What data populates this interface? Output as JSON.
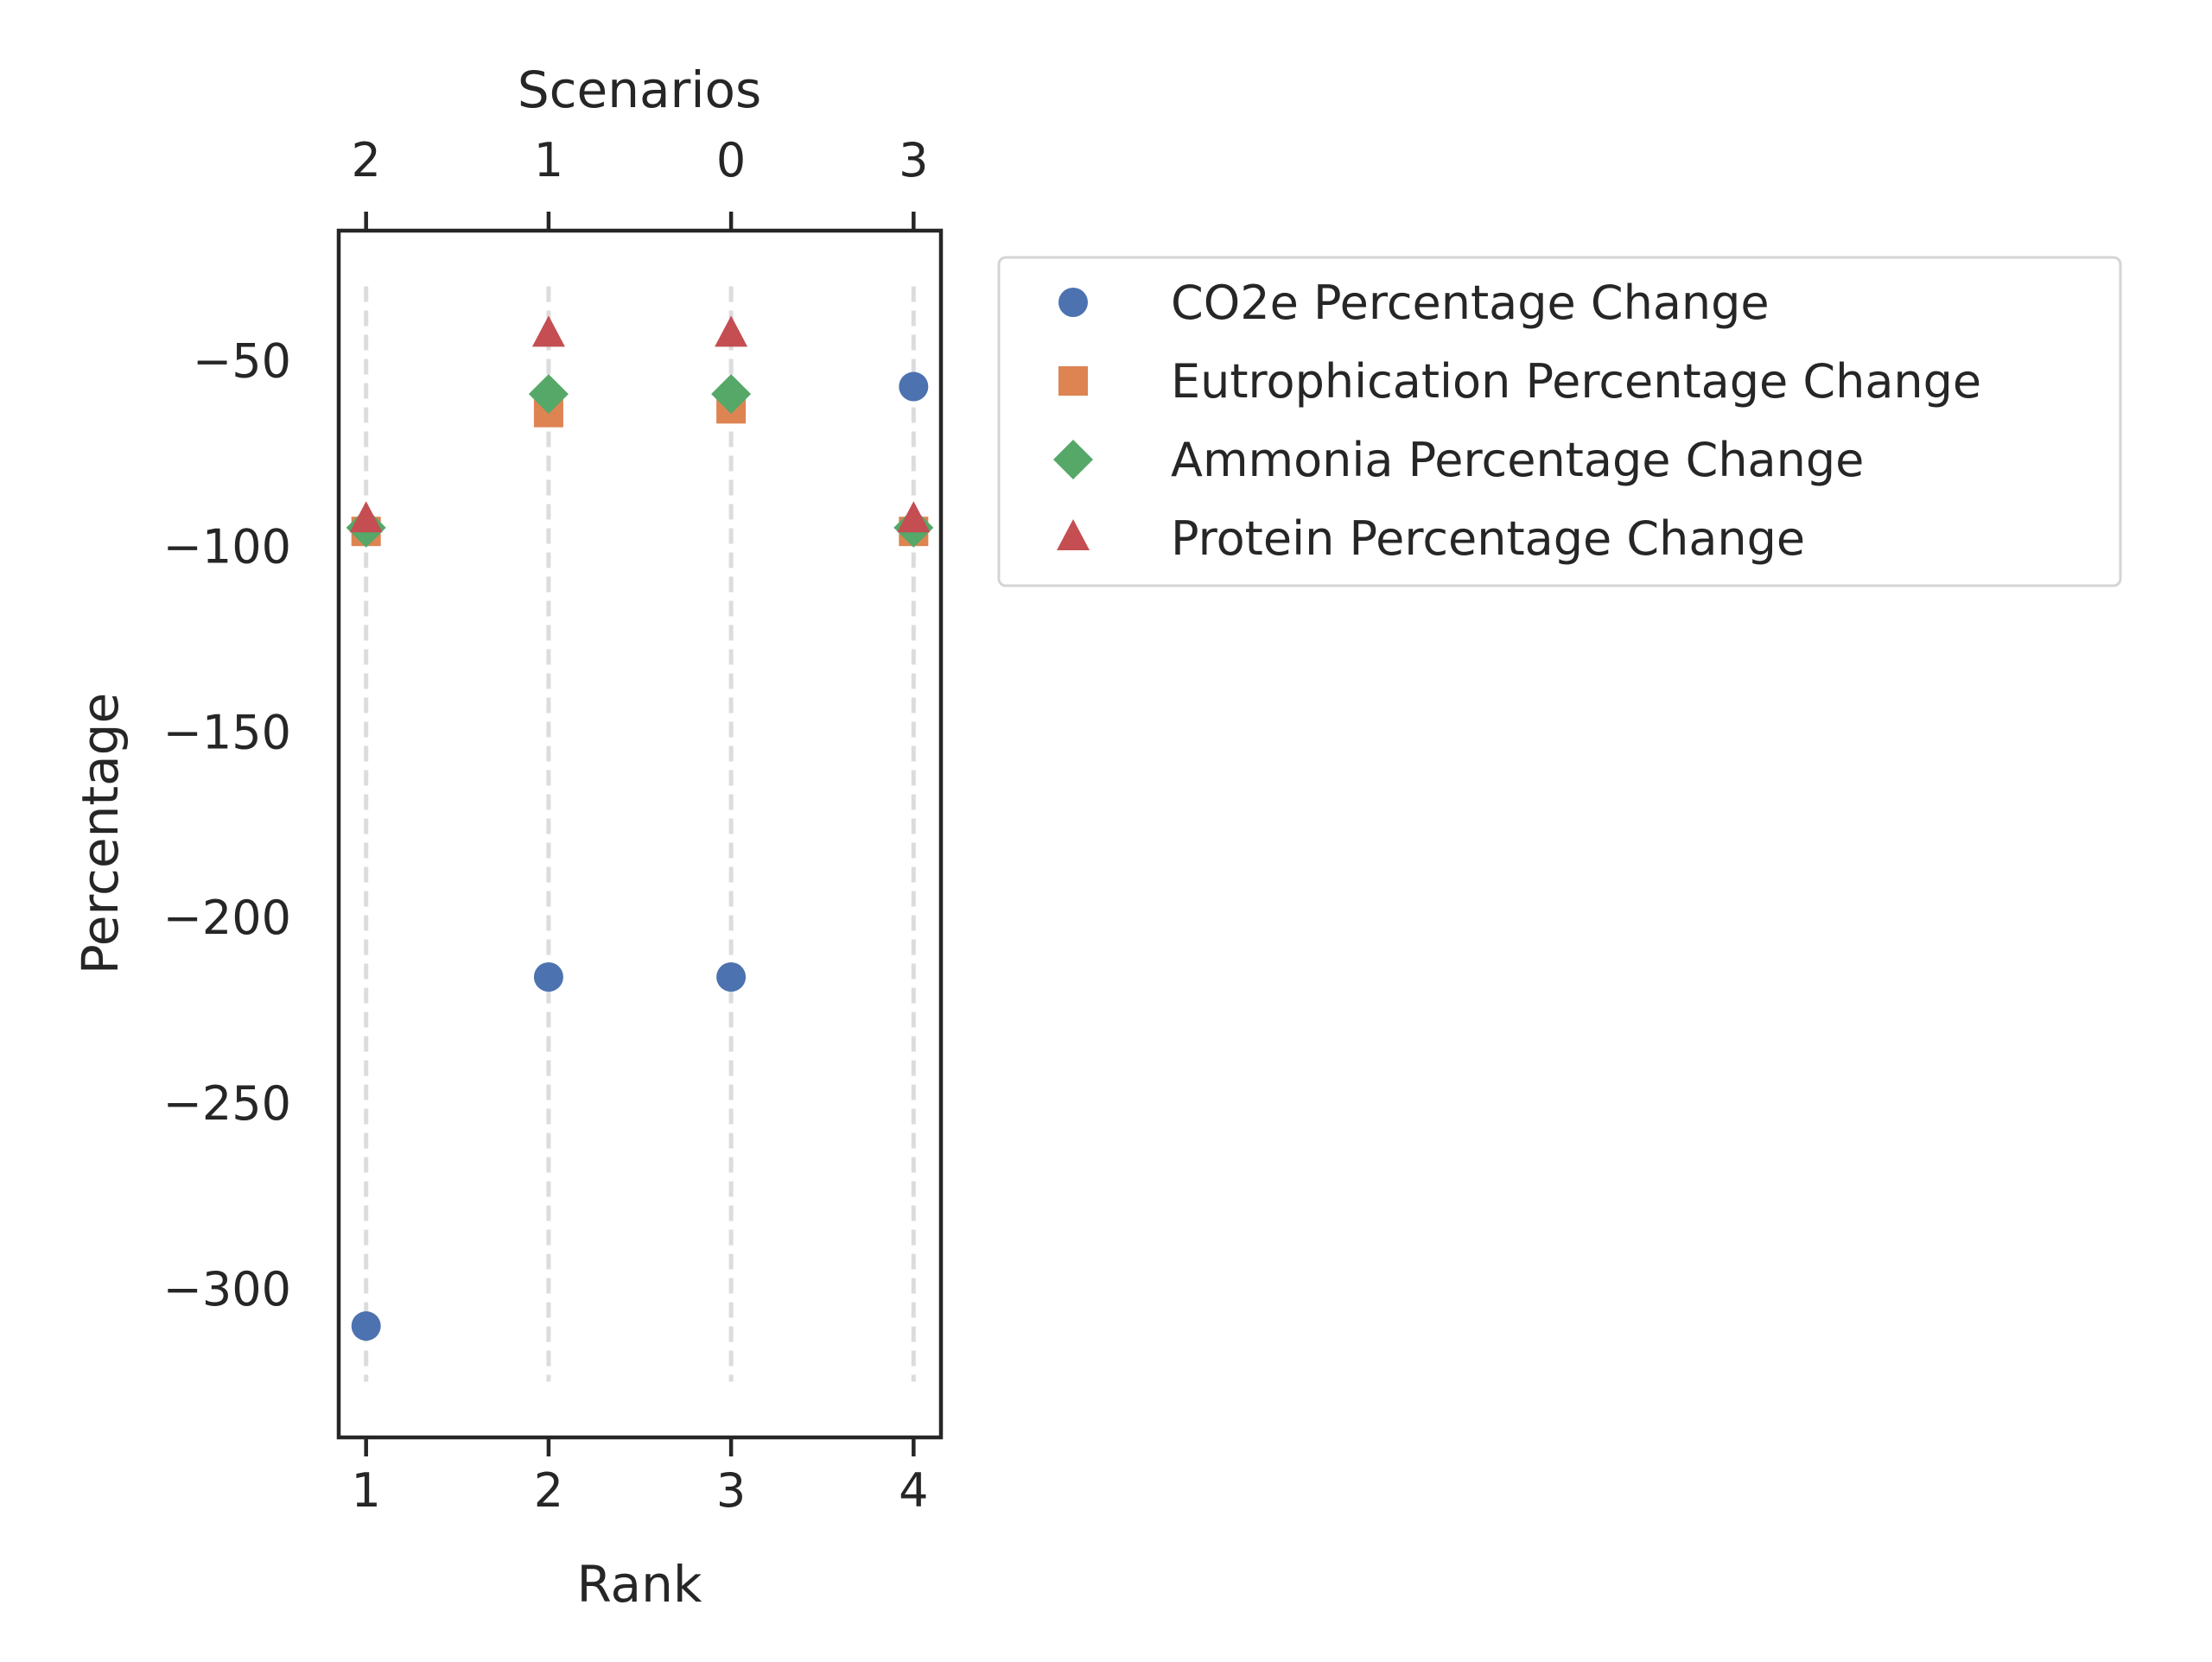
{
  "chart_data": {
    "type": "scatter",
    "title": "",
    "xlabel": "Rank",
    "ylabel": "Percentage",
    "top_xlabel": "Scenarios",
    "x": [
      1,
      2,
      3,
      4
    ],
    "x_tick_labels": [
      "1",
      "2",
      "3",
      "4"
    ],
    "top_tick_labels": [
      "2",
      "1",
      "0",
      "3"
    ],
    "y_ticks": [
      -50,
      -100,
      -150,
      -200,
      -250,
      -300
    ],
    "y_tick_labels": [
      "−50",
      "−100",
      "−150",
      "−200",
      "−250",
      "−300"
    ],
    "xlim": [
      0.85,
      4.15
    ],
    "ylim": [
      -340,
      -15
    ],
    "grid": "vertical dashed lines at each rank",
    "legend_position": "outside right, top",
    "series": [
      {
        "name": "CO2e Percentage Change",
        "marker": "circle",
        "color": "#4c72b0",
        "values": [
          -310,
          -216,
          -216,
          -57
        ]
      },
      {
        "name": "Eutrophication Percentage Change",
        "marker": "square",
        "color": "#dd8452",
        "values": [
          -96,
          -64,
          -63,
          -96
        ]
      },
      {
        "name": "Ammonia Percentage Change",
        "marker": "diamond",
        "color": "#55a868",
        "values": [
          -95,
          -59,
          -59,
          -95
        ]
      },
      {
        "name": "Protein Percentage Change",
        "marker": "triangle",
        "color": "#c44e52",
        "values": [
          -93,
          -43,
          -43,
          -93
        ]
      }
    ]
  }
}
